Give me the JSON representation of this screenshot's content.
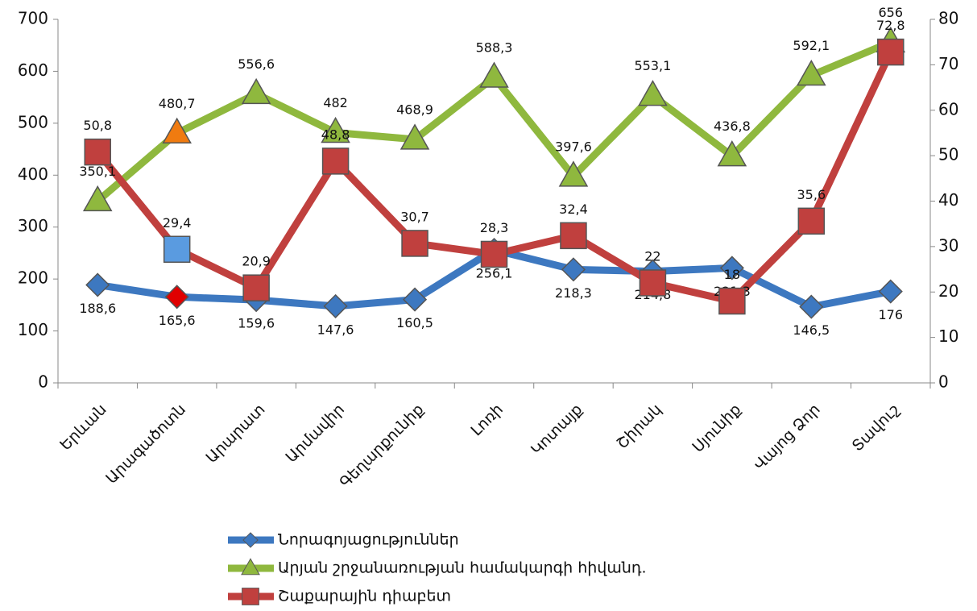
{
  "chart_data": {
    "type": "line",
    "categories": [
      "Երևան",
      "Արագածոտն",
      "Արարատ",
      "Արմավիր",
      "Գեղարքունիք",
      "Լոռի",
      "Կոտայք",
      "Շիրակ",
      "Սյունիք",
      "Վայոց Ձոր",
      "Տավուշ"
    ],
    "series": [
      {
        "name": "Նորագոյացություններ",
        "color": "#3d78c0",
        "marker": "diamond",
        "point_colors": {
          "1": "#e00000"
        },
        "values": [
          188.6,
          165.6,
          159.6,
          147.6,
          160.5,
          256.1,
          218.3,
          214.8,
          221.3,
          146.5,
          176
        ],
        "value_labels": [
          "188,6",
          "165,6",
          "159,6",
          "147,6",
          "160,5",
          "256,1",
          "218,3",
          "214,8",
          "221,3",
          "146,5",
          "176"
        ]
      },
      {
        "name": "Արյան շրջանառության համակարգի հիվանդ.",
        "color": "#8fb83e",
        "marker": "triangle",
        "point_colors": {
          "1": "#f07b10"
        },
        "values": [
          350.1,
          480.7,
          556.6,
          482,
          468.9,
          588.3,
          397.6,
          553.1,
          436.8,
          592.1,
          656
        ],
        "value_labels": [
          "350,1",
          "480,7",
          "556,6",
          "482",
          "468,9",
          "588,3",
          "397,6",
          "553,1",
          "436,8",
          "592,1",
          "656"
        ]
      },
      {
        "name": "Շաքարային դիաբետ",
        "color": "#c0403e",
        "marker": "square",
        "axis": "y2",
        "point_colors": {
          "1": "#5a9be0"
        },
        "values": [
          50.8,
          29.4,
          20.9,
          48.8,
          30.7,
          28.3,
          32.4,
          22,
          18,
          35.6,
          72.8
        ],
        "value_labels": [
          "50,8",
          "29,4",
          "20,9",
          "48,8",
          "30,7",
          "28,3",
          "32,4",
          "22",
          "18",
          "35,6",
          "72,8"
        ]
      }
    ],
    "ylim": [
      0,
      700
    ],
    "yticks": [
      0,
      100,
      200,
      300,
      400,
      500,
      600,
      700
    ],
    "y2lim": [
      0,
      80
    ],
    "y2ticks": [
      0,
      10,
      20,
      30,
      40,
      50,
      60,
      70,
      80
    ],
    "grid": false
  }
}
